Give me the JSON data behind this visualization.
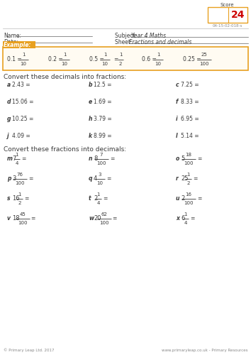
{
  "title": "Fractions and Decimals Year 4 (3)",
  "score_box_value": "24",
  "score_label": "Score",
  "sheet_code": "04-15-02-018-s",
  "bg_color": "#ffffff",
  "orange_color": "#E8A020",
  "score_red": "#cc0000",
  "text_dark": "#3a3a3a",
  "text_gray": "#888888",
  "section1_title": "Convert these decimals into fractions:",
  "section1_items": [
    {
      "label": "a",
      "text": "2.43 ="
    },
    {
      "label": "b",
      "text": "12.5 ="
    },
    {
      "label": "c",
      "text": "7.25 ="
    },
    {
      "label": "d",
      "text": "15.06 ="
    },
    {
      "label": "e",
      "text": "1.69 ="
    },
    {
      "label": "f",
      "text": "8.33 ="
    },
    {
      "label": "g",
      "text": "10.25 ="
    },
    {
      "label": "h",
      "text": "3.79 ="
    },
    {
      "label": "i",
      "text": "6.95 ="
    },
    {
      "label": "j",
      "text": "4.09 ="
    },
    {
      "label": "k",
      "text": "8.99 ="
    },
    {
      "label": "l",
      "text": "5.14 ="
    }
  ],
  "section2_title": "Convert these fractions into decimals:",
  "section2_items": [
    {
      "label": "m",
      "whole": "7",
      "num": "1",
      "den": "4"
    },
    {
      "label": "n",
      "whole": "8",
      "num": "7",
      "den": "100"
    },
    {
      "label": "o",
      "whole": "5",
      "num": "18",
      "den": "100"
    },
    {
      "label": "p",
      "whole": "3",
      "num": "76",
      "den": "100"
    },
    {
      "label": "q",
      "whole": "4",
      "num": "3",
      "den": "10"
    },
    {
      "label": "r",
      "whole": "25",
      "num": "1",
      "den": "2"
    },
    {
      "label": "s",
      "whole": "16",
      "num": "1",
      "den": "2"
    },
    {
      "label": "t",
      "whole": "2",
      "num": "1",
      "den": "4"
    },
    {
      "label": "u",
      "whole": "2",
      "num": "16",
      "den": "100"
    },
    {
      "label": "v",
      "whole": "18",
      "num": "45",
      "den": "100"
    },
    {
      "label": "w",
      "whole": "20",
      "num": "62",
      "den": "100"
    },
    {
      "label": "x",
      "whole": "6",
      "num": "1",
      "den": "4"
    }
  ],
  "footer_left": "© Primary Leap Ltd. 2017",
  "footer_right": "www.primaryleap.co.uk - Primary Resources"
}
